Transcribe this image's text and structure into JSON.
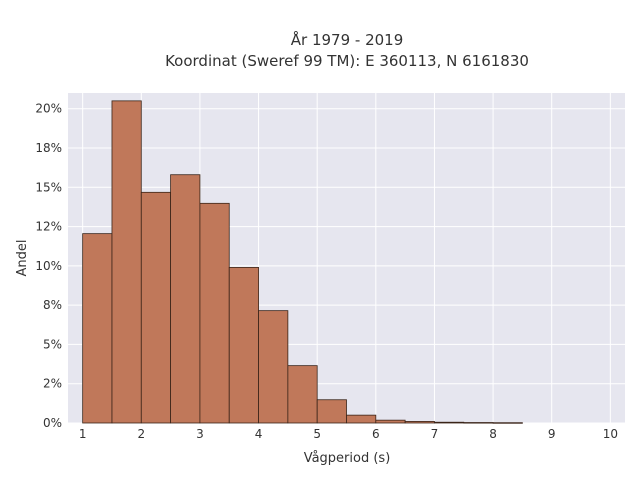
{
  "chart_data": {
    "type": "bar",
    "title_lines": [
      "År 1979 - 2019",
      "Koordinat (Sweref 99 TM): E 360113, N 6161830"
    ],
    "xlabel": "Vågperiod (s)",
    "ylabel": "Andel",
    "bin_edges": [
      1.0,
      1.5,
      2.0,
      2.5,
      3.0,
      3.5,
      4.0,
      4.5,
      5.0,
      5.5,
      6.0,
      6.5,
      7.0,
      7.5,
      8.0,
      8.5
    ],
    "values": [
      0.1205,
      0.205,
      0.1468,
      0.158,
      0.1398,
      0.099,
      0.0715,
      0.0365,
      0.0148,
      0.005,
      0.0018,
      0.001,
      0.0005,
      0.0003,
      0.0002
    ],
    "xlim": [
      0.75,
      10.25
    ],
    "ylim": [
      0,
      0.21
    ],
    "x_ticks": [
      1,
      2,
      3,
      4,
      5,
      6,
      7,
      8,
      9,
      10
    ],
    "x_tick_labels": [
      "1",
      "2",
      "3",
      "4",
      "5",
      "6",
      "7",
      "8",
      "9",
      "10"
    ],
    "y_ticks": [
      0,
      0.025,
      0.05,
      0.075,
      0.1,
      0.125,
      0.15,
      0.175,
      0.2
    ],
    "y_tick_labels": [
      "0%",
      "2%",
      "5%",
      "8%",
      "10%",
      "12%",
      "15%",
      "18%",
      "20%"
    ],
    "grid": true,
    "colors": {
      "bar_fill": "#c0785a",
      "bar_stroke": "#3a2418",
      "plot_background": "#e6e6ef",
      "grid": "#ffffff"
    }
  }
}
